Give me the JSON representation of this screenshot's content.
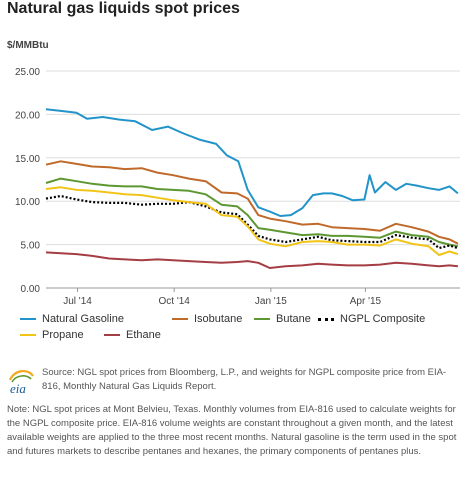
{
  "header": {
    "title": "Natural gas liquids spot prices",
    "unit": "$/MMBtu"
  },
  "chart_data": {
    "type": "line",
    "title": "Natural gas liquids spot prices",
    "ylabel": "$/MMBtu",
    "xlabel": "",
    "ylim": [
      0,
      25
    ],
    "yticks": [
      "0.00",
      "5.00",
      "10.00",
      "15.00",
      "20.00",
      "25.00"
    ],
    "xticks": [
      "Jul '14",
      "Oct '14",
      "Jan '15",
      "Apr '15"
    ],
    "xtick_dates": [
      "2014-07-01",
      "2014-10-01",
      "2015-01-01",
      "2015-04-01"
    ],
    "xlim": [
      "2014-06-01",
      "2015-06-30"
    ],
    "grid": "horizontal",
    "legend_position": "bottom",
    "series": [
      {
        "name": "Natural Gasoline",
        "color": "#2394c9",
        "x": [
          "2014-06-01",
          "2014-06-15",
          "2014-06-30",
          "2014-07-10",
          "2014-07-25",
          "2014-08-10",
          "2014-08-25",
          "2014-09-10",
          "2014-09-25",
          "2014-10-10",
          "2014-10-25",
          "2014-11-10",
          "2014-11-20",
          "2014-12-01",
          "2014-12-10",
          "2014-12-20",
          "2014-12-31",
          "2015-01-10",
          "2015-01-20",
          "2015-01-31",
          "2015-02-10",
          "2015-02-20",
          "2015-02-28",
          "2015-03-10",
          "2015-03-20",
          "2015-03-31",
          "2015-04-05",
          "2015-04-10",
          "2015-04-20",
          "2015-04-30",
          "2015-05-10",
          "2015-05-20",
          "2015-05-31",
          "2015-06-10",
          "2015-06-20",
          "2015-06-28"
        ],
        "y": [
          20.6,
          20.4,
          20.2,
          19.5,
          19.7,
          19.4,
          19.2,
          18.2,
          18.6,
          17.8,
          17.1,
          16.6,
          15.3,
          14.6,
          11.3,
          9.3,
          8.8,
          8.3,
          8.4,
          9.2,
          10.7,
          10.9,
          10.9,
          10.6,
          10.1,
          10.2,
          13.0,
          11.0,
          12.2,
          11.3,
          12.0,
          11.8,
          11.5,
          11.3,
          11.7,
          10.9
        ]
      },
      {
        "name": "Isobutane",
        "color": "#bf6a2b",
        "x": [
          "2014-06-01",
          "2014-06-15",
          "2014-06-30",
          "2014-07-15",
          "2014-07-31",
          "2014-08-15",
          "2014-08-31",
          "2014-09-15",
          "2014-09-30",
          "2014-10-15",
          "2014-10-31",
          "2014-11-15",
          "2014-11-30",
          "2014-12-10",
          "2014-12-20",
          "2014-12-31",
          "2015-01-15",
          "2015-01-31",
          "2015-02-15",
          "2015-02-28",
          "2015-03-15",
          "2015-03-31",
          "2015-04-15",
          "2015-04-30",
          "2015-05-15",
          "2015-05-31",
          "2015-06-10",
          "2015-06-20",
          "2015-06-28"
        ],
        "y": [
          14.2,
          14.6,
          14.3,
          14.0,
          13.9,
          13.7,
          13.8,
          13.3,
          13.0,
          12.6,
          12.3,
          11.0,
          10.9,
          10.3,
          8.4,
          8.0,
          7.7,
          7.3,
          7.4,
          7.0,
          6.9,
          6.8,
          6.6,
          7.4,
          7.0,
          6.5,
          5.9,
          5.6,
          5.1
        ]
      },
      {
        "name": "Butane",
        "color": "#5d9732",
        "x": [
          "2014-06-01",
          "2014-06-15",
          "2014-06-30",
          "2014-07-15",
          "2014-07-31",
          "2014-08-15",
          "2014-08-31",
          "2014-09-15",
          "2014-09-30",
          "2014-10-15",
          "2014-10-31",
          "2014-11-15",
          "2014-11-30",
          "2014-12-10",
          "2014-12-20",
          "2014-12-31",
          "2015-01-15",
          "2015-01-31",
          "2015-02-15",
          "2015-02-28",
          "2015-03-15",
          "2015-03-31",
          "2015-04-15",
          "2015-04-30",
          "2015-05-15",
          "2015-05-31",
          "2015-06-10",
          "2015-06-20",
          "2015-06-28"
        ],
        "y": [
          12.1,
          12.6,
          12.3,
          12.0,
          11.8,
          11.7,
          11.7,
          11.4,
          11.3,
          11.2,
          10.8,
          9.6,
          9.4,
          8.4,
          6.9,
          6.7,
          6.4,
          6.1,
          6.2,
          6.0,
          6.0,
          5.9,
          5.8,
          6.5,
          6.1,
          5.9,
          5.3,
          5.0,
          4.8
        ]
      },
      {
        "name": "NGPL Composite",
        "color": "#000000",
        "dashed": true,
        "x": [
          "2014-06-01",
          "2014-06-15",
          "2014-06-30",
          "2014-07-15",
          "2014-07-31",
          "2014-08-15",
          "2014-08-31",
          "2014-09-15",
          "2014-09-30",
          "2014-10-15",
          "2014-10-31",
          "2014-11-15",
          "2014-11-30",
          "2014-12-10",
          "2014-12-20",
          "2014-12-31",
          "2015-01-15",
          "2015-01-31",
          "2015-02-15",
          "2015-02-28",
          "2015-03-15",
          "2015-03-31",
          "2015-04-15",
          "2015-04-30",
          "2015-05-15",
          "2015-05-31",
          "2015-06-10",
          "2015-06-20",
          "2015-06-28"
        ],
        "y": [
          10.3,
          10.6,
          10.2,
          9.9,
          9.8,
          9.8,
          9.6,
          9.7,
          9.7,
          9.9,
          9.4,
          8.7,
          8.5,
          7.3,
          6.0,
          5.6,
          5.3,
          5.6,
          5.9,
          5.5,
          5.4,
          5.3,
          5.3,
          6.1,
          5.8,
          5.6,
          4.6,
          4.9,
          4.6
        ]
      },
      {
        "name": "Propane",
        "color": "#f2c418",
        "x": [
          "2014-06-01",
          "2014-06-15",
          "2014-06-30",
          "2014-07-15",
          "2014-07-31",
          "2014-08-15",
          "2014-08-31",
          "2014-09-15",
          "2014-09-30",
          "2014-10-15",
          "2014-10-31",
          "2014-11-15",
          "2014-11-30",
          "2014-12-10",
          "2014-12-20",
          "2014-12-31",
          "2015-01-15",
          "2015-01-31",
          "2015-02-15",
          "2015-02-28",
          "2015-03-15",
          "2015-03-31",
          "2015-04-15",
          "2015-04-30",
          "2015-05-15",
          "2015-05-31",
          "2015-06-10",
          "2015-06-20",
          "2015-06-28"
        ],
        "y": [
          11.4,
          11.6,
          11.3,
          11.2,
          11.0,
          10.8,
          10.7,
          10.4,
          10.1,
          9.9,
          9.7,
          8.4,
          8.2,
          7.1,
          5.6,
          5.1,
          4.8,
          5.3,
          5.4,
          5.3,
          5.0,
          5.0,
          4.9,
          5.6,
          5.1,
          4.8,
          3.8,
          4.2,
          3.9
        ]
      },
      {
        "name": "Ethane",
        "color": "#a53d44",
        "x": [
          "2014-06-01",
          "2014-06-15",
          "2014-06-30",
          "2014-07-15",
          "2014-07-31",
          "2014-08-15",
          "2014-08-31",
          "2014-09-15",
          "2014-09-30",
          "2014-10-15",
          "2014-10-31",
          "2014-11-15",
          "2014-11-30",
          "2014-12-10",
          "2014-12-20",
          "2014-12-31",
          "2015-01-15",
          "2015-01-31",
          "2015-02-15",
          "2015-02-28",
          "2015-03-15",
          "2015-03-31",
          "2015-04-15",
          "2015-04-30",
          "2015-05-15",
          "2015-05-31",
          "2015-06-10",
          "2015-06-20",
          "2015-06-28"
        ],
        "y": [
          4.1,
          4.0,
          3.9,
          3.7,
          3.4,
          3.3,
          3.2,
          3.3,
          3.2,
          3.1,
          3.0,
          2.9,
          3.0,
          3.1,
          2.9,
          2.3,
          2.5,
          2.6,
          2.8,
          2.7,
          2.6,
          2.6,
          2.7,
          2.9,
          2.8,
          2.6,
          2.5,
          2.6,
          2.5
        ]
      }
    ]
  },
  "legend": {
    "items": [
      {
        "label": "Natural Gasoline",
        "color": "#2394c9"
      },
      {
        "label": "Isobutane",
        "color": "#bf6a2b"
      },
      {
        "label": "Butane",
        "color": "#5d9732"
      },
      {
        "label": "NGPL Composite",
        "color": "#000000"
      },
      {
        "label": "Propane",
        "color": "#f2c418"
      },
      {
        "label": "Ethane",
        "color": "#a53d44"
      }
    ]
  },
  "footer": {
    "logo_text": "eia",
    "source": "Source: NGL spot prices from Bloomberg, L.P., and weights for NGPL composite price from EIA-816, Monthly Natural Gas Liquids Report.",
    "note": "Note: NGL spot prices at Mont Belvieu, Texas. Monthly volumes from EIA-816 used to calculate weights for the NGPL composite price. EIA-816 volume weights are constant throughout a given month, and the latest available weights are applied to the three most recent months. Natural gasoline is the term used in the spot and futures markets to describe pentanes and hexanes, the primary components of pentanes plus."
  }
}
